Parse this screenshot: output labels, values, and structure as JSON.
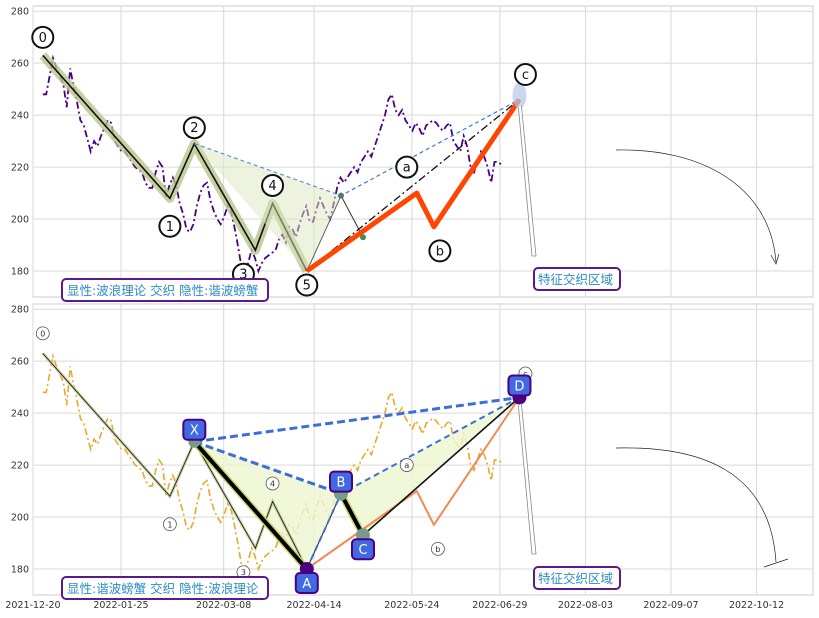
{
  "chart_data": [
    {
      "type": "line",
      "panel": "top",
      "ylim": [
        170,
        282
      ],
      "yticks": [
        180,
        200,
        220,
        240,
        260,
        280
      ],
      "grid": true,
      "price_series": {
        "color": "#4b0082",
        "style": "dash-dot",
        "values": [
          248,
          248,
          255,
          262,
          258,
          255,
          252,
          243,
          258,
          251,
          245,
          238,
          236,
          231,
          226,
          230,
          228,
          232,
          235,
          238,
          237,
          230,
          228,
          226,
          226,
          224,
          222,
          220,
          219,
          218,
          214,
          212,
          212,
          218,
          222,
          220,
          208,
          213,
          216,
          213,
          206,
          202,
          196,
          195,
          198,
          205,
          210,
          213,
          214,
          207,
          203,
          200,
          198,
          201,
          205,
          203,
          197,
          190,
          182,
          180,
          183,
          188,
          185,
          180,
          183,
          185,
          186,
          187,
          188,
          192,
          194,
          191,
          197,
          196,
          193,
          198,
          202,
          205,
          199,
          199,
          204,
          208,
          205,
          202,
          200,
          206,
          212,
          216,
          214,
          216,
          218,
          220,
          218,
          222,
          224,
          226,
          224,
          228,
          232,
          236,
          240,
          246,
          248,
          242,
          240,
          242,
          238,
          236,
          234,
          237,
          235,
          232,
          236,
          237,
          238,
          237,
          235,
          234,
          236,
          237,
          230,
          228,
          226,
          232,
          228,
          220,
          218,
          222,
          226,
          224,
          220,
          214,
          222,
          222,
          221
        ]
      },
      "elliott_wave": {
        "dates": [
          "2021-12-24",
          "2022-02-14",
          "2022-02-24",
          "2022-03-21",
          "2022-03-28",
          "2022-04-11"
        ],
        "values": [
          263,
          208,
          229,
          188,
          206,
          180
        ],
        "labels": [
          "0",
          "1",
          "2",
          "3",
          "4",
          "5"
        ]
      },
      "corrective_wave": {
        "dates": [
          "2022-04-11",
          "2022-05-26",
          "2022-06-02",
          "2022-07-07"
        ],
        "values": [
          180,
          210,
          197,
          246
        ],
        "labels": [
          "a",
          "b",
          "c"
        ]
      },
      "feature_annotation": "特征交织区域",
      "legend_text": "显性:波浪理论 交织 隐性:谐波螃蟹"
    },
    {
      "type": "line",
      "panel": "bottom",
      "ylim": [
        170,
        282
      ],
      "yticks": [
        180,
        200,
        220,
        240,
        260,
        280
      ],
      "grid": true,
      "price_series": {
        "color": "#e8a92a",
        "style": "dash-dot"
      },
      "harmonic_crab": {
        "dates": [
          "2022-02-24",
          "2022-04-11",
          "2022-04-25",
          "2022-05-04",
          "2022-07-07"
        ],
        "values": [
          229,
          180,
          209,
          193,
          246
        ],
        "labels": [
          "X",
          "A",
          "B",
          "C",
          "D"
        ]
      },
      "feature_annotation": "特征交织区域",
      "legend_text": "显性:谐波螃蟹 交织 隐性:波浪理论"
    }
  ],
  "x_axis": {
    "tick_labels": [
      "2021-12-20",
      "2022-01-25",
      "2022-03-08",
      "2022-04-14",
      "2022-05-24",
      "2022-06-29",
      "2022-08-03",
      "2022-09-07",
      "2022-10-12"
    ]
  },
  "colors": {
    "purple_series": "#4b0082",
    "orange_series": "#e8a92a",
    "impulse_wave": "#ff4500",
    "harmonic_dash": "#3a6fd8",
    "box_border": "#5a1a8c",
    "box_text": "#2b8cc4",
    "point_fill": "#4169e1"
  }
}
